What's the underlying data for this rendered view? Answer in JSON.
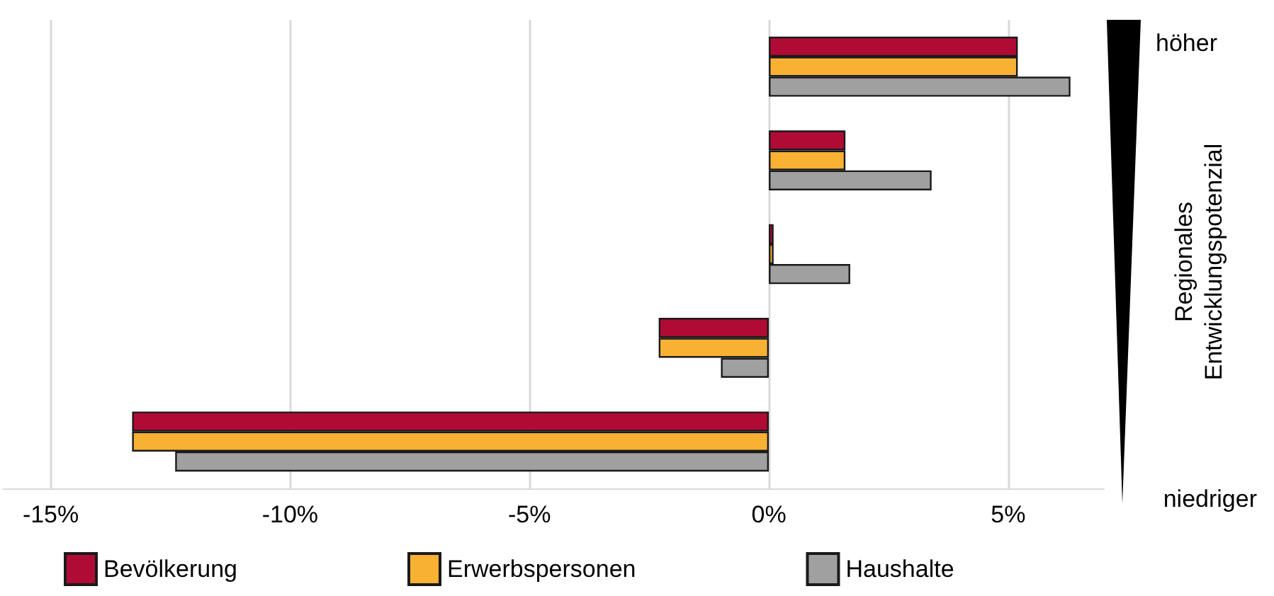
{
  "chart_data": {
    "type": "bar",
    "orientation": "horizontal",
    "categories": [
      null,
      null,
      null,
      null,
      null
    ],
    "series": [
      {
        "name": "Bevölkerung",
        "color": "#b00b35",
        "values": [
          5.2,
          1.6,
          0.1,
          -2.3,
          -13.3
        ]
      },
      {
        "name": "Erwerbspersonen",
        "color": "#f8b133",
        "values": [
          5.2,
          1.6,
          0.1,
          -2.3,
          -13.3
        ]
      },
      {
        "name": "Haushalte",
        "color": "#a0a0a0",
        "values": [
          6.3,
          3.4,
          1.7,
          -1.0,
          -12.4
        ]
      }
    ],
    "xlim": [
      -16,
      7
    ],
    "xticks": [
      {
        "value": -15,
        "label": "-15%"
      },
      {
        "value": -10,
        "label": "-10%"
      },
      {
        "value": -5,
        "label": "-5%"
      },
      {
        "value": 0,
        "label": "0%"
      },
      {
        "value": 5,
        "label": "5%"
      }
    ],
    "grid": "x",
    "legend": "bottom",
    "annotations": [
      "höher",
      "Regionales\nEntwicklungspotenzial",
      "niedriger"
    ]
  }
}
